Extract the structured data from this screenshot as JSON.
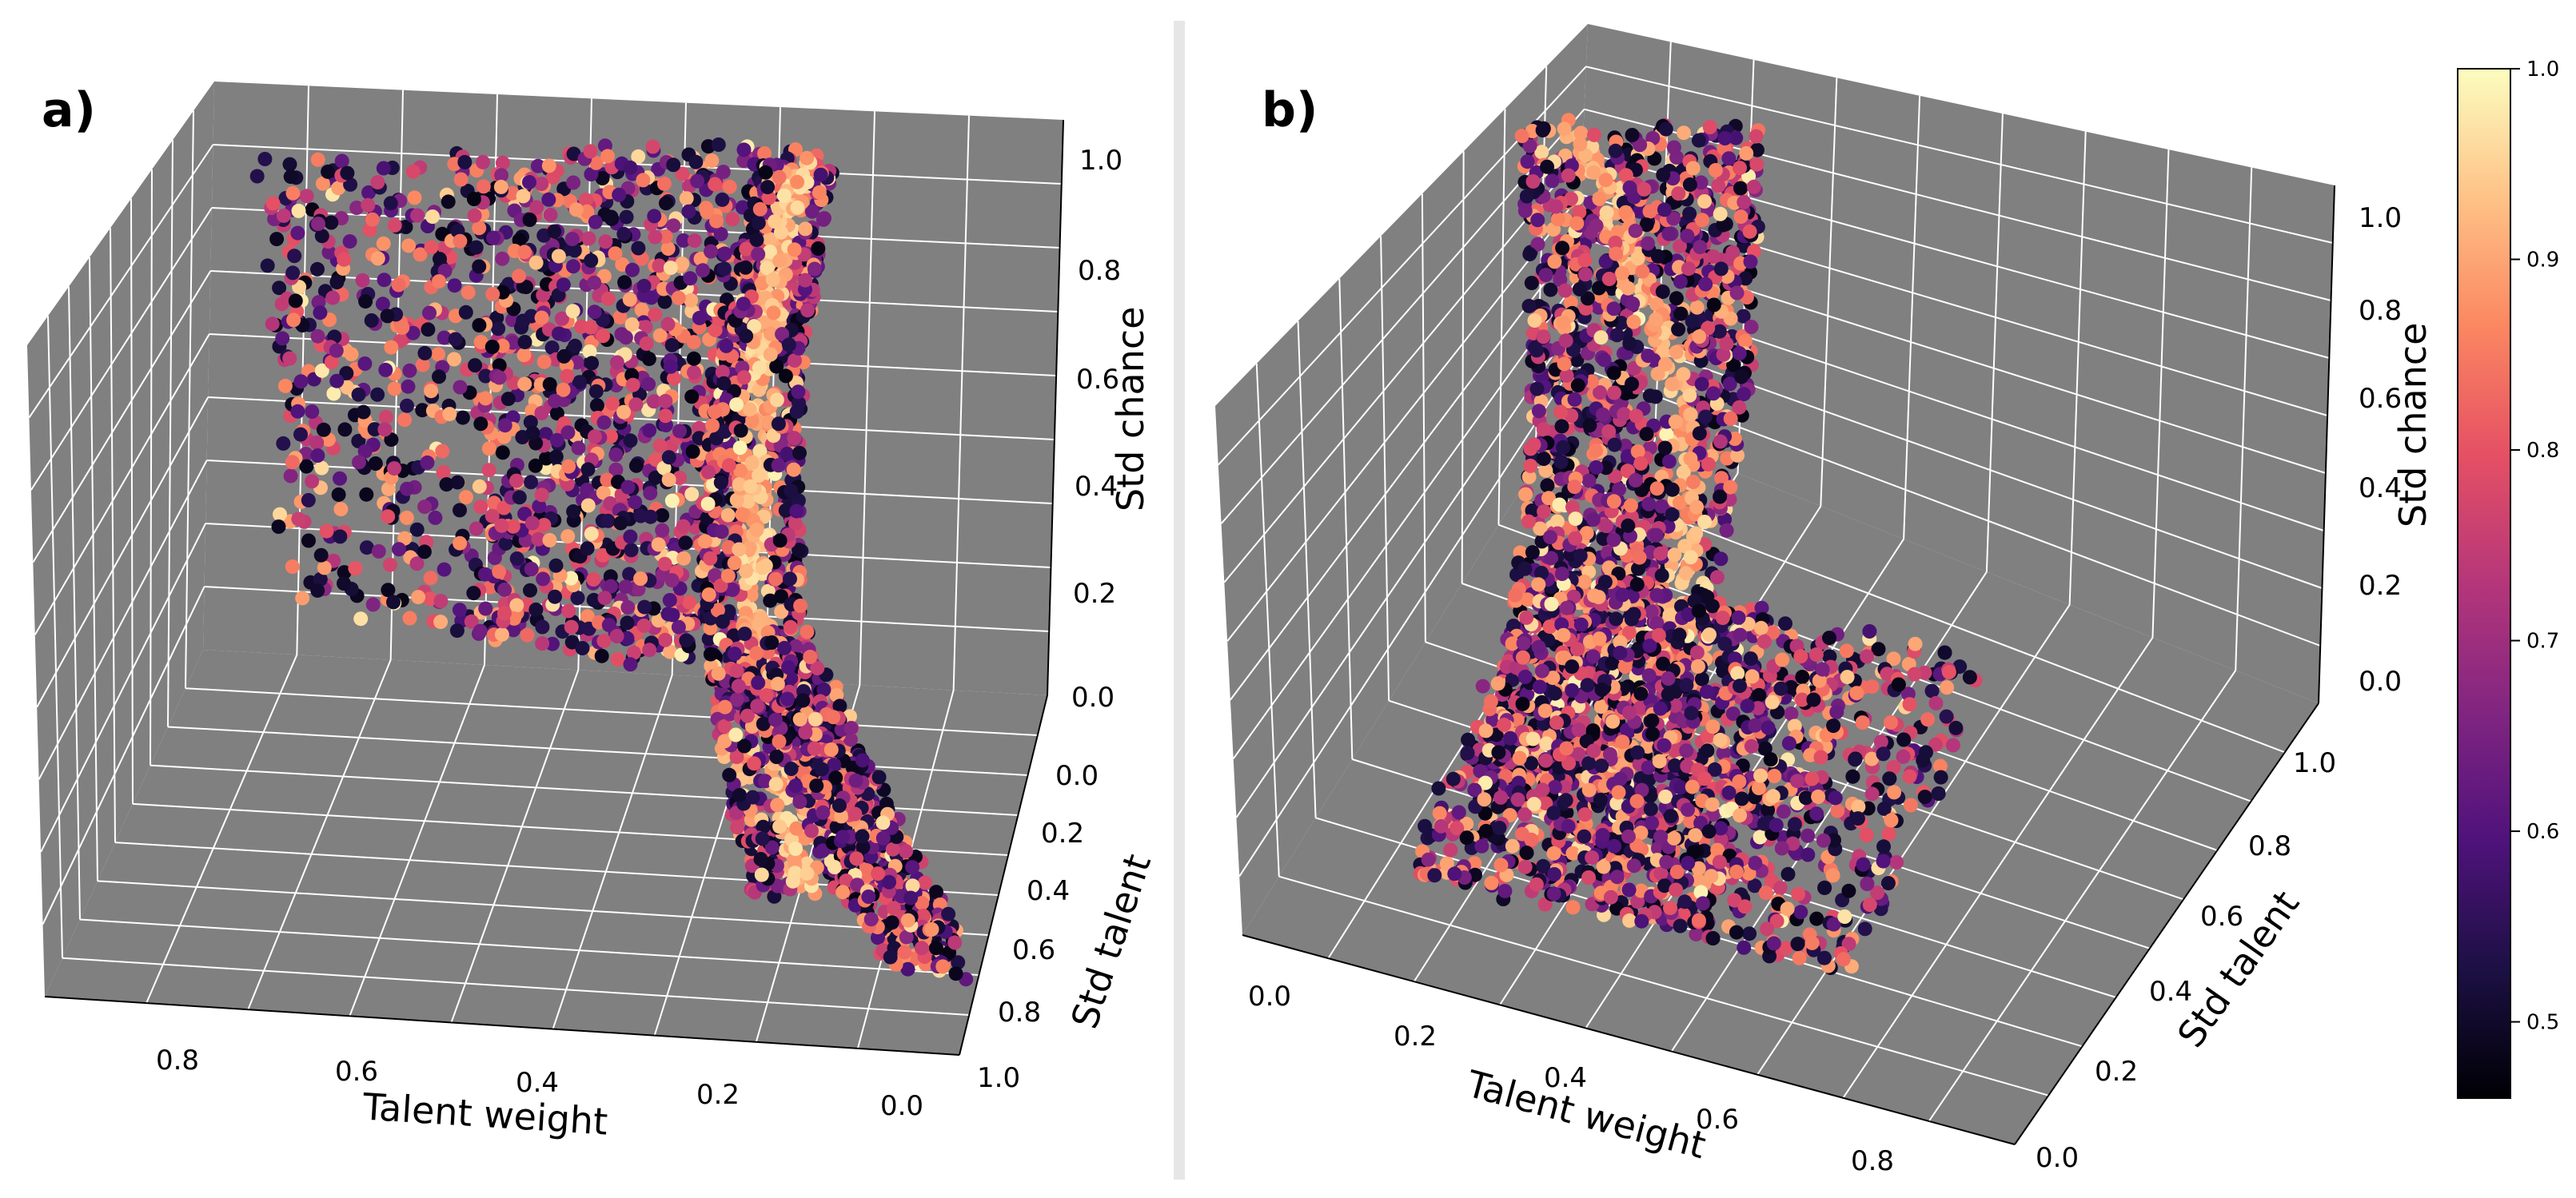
{
  "divider_color": "#e6e6e6",
  "pane_color": "#808080",
  "grid_color": "#ffffff",
  "colormap": "magma",
  "colorbar": {
    "range": [
      0.46,
      1.0
    ],
    "ticks": [
      "0.5",
      "0.6",
      "0.7",
      "0.8",
      "0.9",
      "1.0"
    ]
  },
  "chart_data": [
    {
      "type": "scatter3d",
      "panel_label": "a)",
      "xlabel": "Talent weight",
      "ylabel": "Std talent",
      "zlabel": "Std chance",
      "xlim": [
        0.0,
        1.0
      ],
      "ylim": [
        0.0,
        1.0
      ],
      "zlim": [
        0.0,
        1.0
      ],
      "x_ticks": [
        "0.8",
        "0.6",
        "0.4",
        "0.2",
        "0.0"
      ],
      "y_ticks": [
        "0.0",
        "0.2",
        "0.4",
        "0.6",
        "0.8",
        "1.0"
      ],
      "z_ticks": [
        "0.0",
        "0.2",
        "0.4",
        "0.6",
        "0.8",
        "1.0"
      ],
      "color_label": "colour value (0.46–1.0, magma)",
      "points_estimated": 4200,
      "shape": "sheet: steep ridge near talent weight ≈ 0.1–0.2 rising to std chance ≈ 1.0, flat upper plateau toward talent weight 1.0"
    },
    {
      "type": "scatter3d",
      "panel_label": "b)",
      "xlabel": "Talent weight",
      "ylabel": "Std talent",
      "zlabel": "Std chance",
      "xlim": [
        0.0,
        0.9
      ],
      "ylim": [
        0.0,
        1.0
      ],
      "zlim": [
        0.0,
        1.0
      ],
      "x_ticks": [
        "0.0",
        "0.2",
        "0.4",
        "0.6",
        "0.8"
      ],
      "y_ticks": [
        "0.0",
        "0.2",
        "0.4",
        "0.6",
        "0.8",
        "1.0"
      ],
      "z_ticks": [
        "0.0",
        "0.2",
        "0.4",
        "0.6",
        "0.8",
        "1.0"
      ],
      "color_label": "colour value (0.46–1.0, magma)",
      "points_estimated": 4200,
      "shape": "tall folded sheet near talent weight ≈ 0–0.2 reaching std chance ≈ 1.0, lower sheet spreading toward talent weight 0.8"
    }
  ]
}
